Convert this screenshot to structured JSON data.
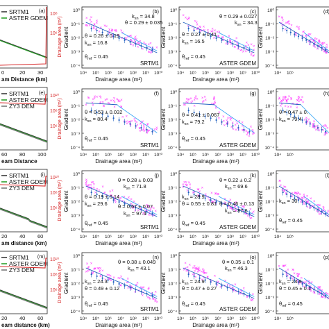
{
  "colors": {
    "srtm": "#3a3a3a",
    "aster": "#2ca02c",
    "zy3": "#7a7a7a",
    "red_axis": "#d62728",
    "points": "#ff33ff",
    "fit": "#1f5fbf",
    "fit2": "#3fa9f5"
  },
  "chart_data": [
    {
      "type": "line",
      "panel": "(a)",
      "xlabel": "am Distance (km)",
      "ylabel_right": "Drainage area (m²)",
      "legend": [
        "SRTM1",
        "ASTER GDEM"
      ],
      "xticks": [
        "0",
        "20",
        "30"
      ],
      "xlim": [
        0,
        40
      ],
      "right_ticks": [
        "10^8",
        "10^6"
      ],
      "series": [
        {
          "name": "SRTM1",
          "x": [
            0,
            10,
            20,
            30,
            38
          ],
          "y": [
            0.78,
            0.7,
            0.6,
            0.5,
            0.45
          ]
        },
        {
          "name": "ASTER GDEM",
          "x": [
            0,
            10,
            20,
            30,
            38
          ],
          "y": [
            0.76,
            0.68,
            0.58,
            0.49,
            0.44
          ]
        },
        {
          "name": "Drainage area",
          "x": [
            0,
            20,
            39,
            40
          ],
          "y": [
            0.05,
            0.05,
            0.07,
            0.98
          ]
        }
      ]
    },
    {
      "type": "scatter",
      "panel": "(b)",
      "dem": "SRTM1",
      "xlabel": "Drainage area (m²)",
      "ylabel": "Gradient",
      "annotations": [
        {
          "text": "k_sn = 34.8"
        },
        {
          "text": "θ = 0.29 ± 0.035"
        },
        {
          "text": "θ = 0.26 ± 0.19"
        },
        {
          "text": "k_sn = 16.8"
        },
        {
          "text": "θ_ref = 0.45"
        }
      ]
    },
    {
      "type": "scatter",
      "panel": "(c)",
      "dem": "ASTER GDEM",
      "ylabel": "Gradient",
      "annotations": [
        {
          "text": "θ = 0.29 ± 0.027"
        },
        {
          "text": "θ = 0.27 ± 0.41"
        },
        {
          "text": "k_sn = 34.3"
        },
        {
          "text": "k_sn = 16.5"
        },
        {
          "text": "θ_ref = 0.45"
        }
      ]
    },
    {
      "type": "scatter",
      "panel": "(d)",
      "ylabel": "Gradient"
    },
    {
      "type": "line",
      "panel": "(e)",
      "xlabel": "eam Distance",
      "legend": [
        "SRTM1",
        "ASTER GDEM",
        "ZY3 DEM"
      ],
      "xticks": [
        "60",
        "80",
        "100"
      ],
      "right_ticks": [
        "10^10",
        "10^8",
        "10^6"
      ]
    },
    {
      "type": "scatter",
      "panel": "(f)",
      "dem": "SRTM1",
      "xlabel": "Drainage area (m²)",
      "ylabel": "Gradient",
      "annotations": [
        {
          "text": "θ = 0.53 ± 0.032"
        },
        {
          "text": "k_sn = 80.4"
        },
        {
          "text": "θ_ref = 0.45"
        }
      ]
    },
    {
      "type": "scatter",
      "panel": "(g)",
      "dem": "ASTER GDEM",
      "ylabel": "Gradient",
      "annotations": [
        {
          "text": "θ = 0.41 ± 0.067"
        },
        {
          "text": "k_sn = 79.2"
        },
        {
          "text": "θ_ref = 0.45"
        }
      ]
    },
    {
      "type": "scatter",
      "panel": "(h)",
      "ylabel": "Gradient",
      "annotations": [
        {
          "text": "θ = 0.47 ± 0."
        },
        {
          "text": "k_sn = 79.4"
        }
      ]
    },
    {
      "type": "line",
      "panel": "(i)",
      "xlabel": "am distance (km)",
      "legend": [
        "SRTM1",
        "ASTER GDEM",
        "ZY3 DEM"
      ],
      "xticks": [
        "20",
        "40",
        "60"
      ],
      "right_ticks": [
        "10^10",
        "10^8",
        "10^6"
      ]
    },
    {
      "type": "scatter",
      "panel": "(j)",
      "dem": "SRTM1",
      "xlabel": "Drainage area (m²)",
      "ylabel": "Gradient",
      "annotations": [
        {
          "text": "θ = 0.28 ± 0.03"
        },
        {
          "text": "k_sn = 71.8"
        },
        {
          "text": "θ = 0.19 ± 0.14"
        },
        {
          "text": "k_sn = 29.6"
        },
        {
          "text": "θ = 0.67 ± 0.07"
        },
        {
          "text": "k_sn = 97.4"
        },
        {
          "text": "θ_ref = 0.45"
        }
      ]
    },
    {
      "type": "scatter",
      "panel": "(k)",
      "dem": "ASTER GDEM",
      "ylabel": "Gradient",
      "annotations": [
        {
          "text": "θ = 0.22 ± 0.2"
        },
        {
          "text": "k_sn = 69.6"
        },
        {
          "text": "k_sn = 28.9"
        },
        {
          "text": "θ = 0.55 ± 0.81"
        },
        {
          "text": "θ = 0.46 ± 0.13"
        },
        {
          "text": "k_sn = 87.6"
        },
        {
          "text": "θ_ref = 0.45"
        }
      ]
    },
    {
      "type": "scatter",
      "panel": "(l)",
      "ylabel": "Gradient",
      "annotations": [
        {
          "text": "k_sn = 30"
        },
        {
          "text": "θ_ref = 0.45"
        }
      ]
    },
    {
      "type": "line",
      "panel": "(m)",
      "xlabel": "eam distance (km)",
      "legend": [
        "SRTM1",
        "ASTER GDEM",
        "ZY3 DEM"
      ],
      "xticks": [
        "20",
        "40",
        "60"
      ],
      "right_ticks": [
        "10^10",
        "10^8",
        "10^6"
      ]
    },
    {
      "type": "scatter",
      "panel": "(n)",
      "dem": "SRTM1",
      "xlabel": "Drainage area (m²)",
      "ylabel": "Gradient",
      "annotations": [
        {
          "text": "θ = 0.38 ± 0.049"
        },
        {
          "text": "k_sn = 43.1"
        },
        {
          "text": "k_sn = 24.3"
        },
        {
          "text": "θ = 0.49 ± 0.12"
        },
        {
          "text": "θ_ref = 0.45"
        }
      ]
    },
    {
      "type": "scatter",
      "panel": "(o)",
      "dem": "ASTER GDEM",
      "ylabel": "Gradient",
      "annotations": [
        {
          "text": "θ = 0.35 ± 0.1"
        },
        {
          "text": "k_sn = 46.3"
        },
        {
          "text": "k_sn = 24.9"
        },
        {
          "text": "θ = 0.47 ± 0.27"
        },
        {
          "text": "θ_ref = 0.45"
        }
      ]
    },
    {
      "type": "scatter",
      "panel": "(p)",
      "ylabel": "Gradient",
      "annotations": [
        {
          "text": "k_sn = 24.9"
        },
        {
          "text": "θ = 0.45 ± 0.1"
        },
        {
          "text": "θ_ref = 0.45"
        }
      ]
    }
  ],
  "left_panels": [
    {
      "label": "(a)",
      "legend": [
        "SRTM1",
        "ASTER GDEM"
      ],
      "xlabel": "am Distance (km)",
      "xticks": [
        "0",
        "20",
        "30"
      ],
      "right_ticks": [
        "10⁸",
        "10⁶"
      ],
      "right_label": "Drainage area (m²)"
    },
    {
      "label": "(e)",
      "legend": [
        "SRTM1",
        "ASTER GDEM",
        "ZY3 DEM"
      ],
      "xlabel": "eam Distance",
      "xticks": [
        "60",
        "80",
        "100"
      ],
      "right_ticks": [
        "10¹⁰",
        "10⁸",
        "10⁶"
      ],
      "right_label": "Drainage area (m²)"
    },
    {
      "label": "(i)",
      "legend": [
        "SRTM1",
        "ASTER GDEM",
        "ZY3 DEM"
      ],
      "xlabel": "am distance (km)",
      "xticks": [
        "20",
        "40",
        "60"
      ],
      "right_ticks": [
        "10¹⁰",
        "10⁸",
        "10⁶"
      ],
      "right_label": "Drainage area (m²)"
    },
    {
      "label": "(m)",
      "legend": [
        "SRTM1",
        "ASTER GDEM",
        "ZY3 DEM"
      ],
      "xlabel": "eam distance (km)",
      "xticks": [
        "20",
        "40",
        "60"
      ],
      "right_ticks": [
        "10¹⁰",
        "10⁸",
        "10⁶"
      ],
      "right_label": "Drainage area (m²)"
    }
  ],
  "scatter_panels": [
    {
      "label": "(b)",
      "dem": "SRTM1",
      "ylabel": "Gradient",
      "xlabel": "Drainage area   (m²)",
      "show_xlabel": true,
      "xticks": [
        "10⁴",
        "10⁵",
        "10⁶",
        "10⁷",
        "10⁸",
        "10⁹",
        "10¹⁰"
      ],
      "yticks": [
        "10⁰",
        "10⁻¹",
        "10⁻²",
        "10⁻³",
        "10⁻⁴"
      ],
      "ann": [
        "θ = 0.29 ± 0.035",
        "k",
        "θ = 0.26 ± 0.19",
        "k",
        "θ"
      ],
      "ann_sub": [
        "",
        "sn",
        "",
        "sn",
        "ref"
      ],
      "ann_val": [
        "",
        " = 34.8",
        "",
        " = 16.8",
        " = 0.45"
      ]
    },
    {
      "label": "(c)",
      "dem": "ASTER GDEM",
      "ylabel": "Gradient",
      "xlabel": "Drainage area   (m²)",
      "show_xlabel": false,
      "xticks": [
        "10⁴",
        "10⁵",
        "10⁶",
        "10⁷",
        "10⁸",
        "10⁹",
        "10¹⁰"
      ],
      "yticks": [
        "10⁰",
        "10⁻¹",
        "10⁻²",
        "10⁻³",
        "10⁻⁴"
      ]
    },
    {
      "label": "(d)",
      "dem": "",
      "ylabel": "Gradient",
      "xticks": [
        "10⁴",
        "10⁵"
      ],
      "yticks": [
        "10⁰",
        "10⁻¹",
        "10⁻²",
        "10⁻³",
        "10⁻⁴"
      ]
    }
  ],
  "text": {
    "b_t1": "θ = 0.29 ± 0.035",
    "b_k1": "k",
    "b_k1v": " = 34.8",
    "b_t2": "θ = 0.26 ± 0.19",
    "b_k2": "k",
    "b_k2v": " = 16.8",
    "c_t1": "θ = 0.29 ± 0.027",
    "c_t2": "θ = 0.27 ± 0.41",
    "c_k1": "k",
    "c_k1v": " = 34.3",
    "c_k2": "k",
    "c_k2v": " = 16.5",
    "f_t1": "θ = 0.53 ± 0.032",
    "f_k1": "k",
    "f_k1v": " = 80.4",
    "g_t1": "θ = 0.41 ± 0.067",
    "g_k1": "k",
    "g_k1v": " = 79.2",
    "h_t1": "θ = 0.47 ± 0.",
    "h_k1": "k",
    "h_k1v": " = 79.4",
    "j_t1": "θ = 0.28 ± 0.03",
    "j_k1": "k",
    "j_k1v": " = 71.8",
    "j_t2": "θ = 0.19 ± 0.14",
    "j_k2": "k",
    "j_k2v": " = 29.6",
    "j_t3": "θ = 0.67 ± 0.07",
    "j_k3": "k",
    "j_k3v": " = 97.4",
    "k_t1": "θ = 0.22 ± 0.2",
    "k_k1": "k",
    "k_k1v": " = 69.6",
    "k_k2": "k",
    "k_k2v": " = 28.9",
    "k_t2": "θ = 0.55 ± 0.81",
    "k_t3": "θ = 0.46 ± 0.13",
    "k_k3": "k",
    "k_k3v": " = 87.6",
    "l_k1": "k",
    "l_k1v": " = 30",
    "n_t1": "θ = 0.38 ± 0.049",
    "n_k1": "k",
    "n_k1v": " = 43.1",
    "n_k2": "k",
    "n_k2v": " = 24.3",
    "n_t2": "θ = 0.49 ± 0.12",
    "o_t1": "θ = 0.35 ± 0.1",
    "o_k1": "k",
    "o_k1v": " = 46.3",
    "o_k2": "k",
    "o_k2v": " = 24.9",
    "o_t2": "θ = 0.47 ± 0.27",
    "p_k1": "k",
    "p_k1v": " = 24.9",
    "p_t1": "θ = 0.45 ± 0.1",
    "sub_sn": "sn",
    "sub_ref": "ref",
    "theta": "θ",
    "ref_val": " = 0.45",
    "srtm": "SRTM1",
    "aster": "ASTER GDEM",
    "gradient": "Gradient",
    "darea": "Drainage area",
    "darea_unit": "(m²)",
    "lbl_b": "(b)",
    "lbl_c": "(c)",
    "lbl_d": "(d)",
    "lbl_f": "(f)",
    "lbl_g": "(g)",
    "lbl_h": "(h)",
    "lbl_j": "(j)",
    "lbl_k": "(k)",
    "lbl_l": "(l)",
    "lbl_n": "(n)",
    "lbl_o": "(o)",
    "lbl_p": "(p)"
  }
}
